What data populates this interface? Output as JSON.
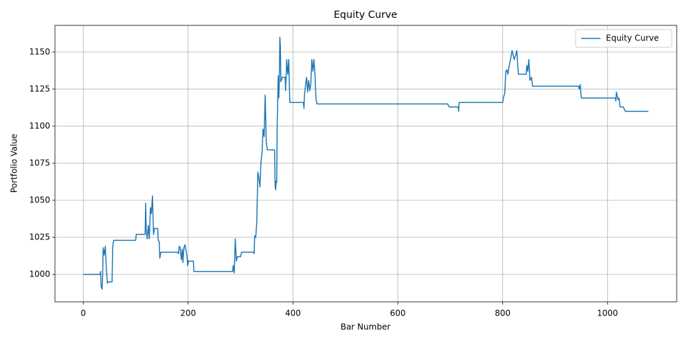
{
  "chart_data": {
    "type": "line",
    "title": "Equity Curve",
    "x_label": "Bar Number",
    "y_label": "Portfolio Value",
    "xlim": [
      -54,
      1132
    ],
    "ylim": [
      981.5,
      1168
    ],
    "xticks": [
      0,
      200,
      400,
      600,
      800,
      1000
    ],
    "yticks": [
      1000,
      1025,
      1050,
      1075,
      1100,
      1125,
      1150
    ],
    "grid": true,
    "legend": "upper right",
    "x": [
      0,
      32,
      33,
      34,
      36,
      37,
      38,
      40,
      42,
      44,
      46,
      48,
      55,
      56,
      58,
      100,
      101,
      118,
      119,
      120,
      122,
      124,
      126,
      128,
      130,
      132,
      134,
      136,
      142,
      143,
      145,
      146,
      148,
      180,
      182,
      183,
      185,
      187,
      189,
      190,
      192,
      194,
      196,
      198,
      199,
      201,
      210,
      211,
      285,
      286,
      288,
      290,
      292,
      294,
      300,
      302,
      325,
      326,
      327,
      329,
      331,
      333,
      335,
      337,
      339,
      341,
      343,
      345,
      347,
      349,
      351,
      365,
      366,
      367,
      368,
      369,
      370,
      372,
      373,
      374,
      375,
      376,
      377,
      380,
      385,
      386,
      388,
      390,
      392,
      394,
      420,
      421,
      422,
      424,
      426,
      428,
      430,
      432,
      434,
      436,
      438,
      440,
      442,
      444,
      446,
      695,
      698,
      715,
      716,
      717,
      800,
      802,
      804,
      806,
      808,
      810,
      812,
      815,
      818,
      820,
      822,
      825,
      827,
      830,
      845,
      846,
      848,
      850,
      852,
      855,
      857,
      945,
      946,
      948,
      950,
      1015,
      1016,
      1017,
      1020,
      1022,
      1024,
      1030,
      1034,
      1078
    ],
    "series": [
      {
        "name": "Equity Curve",
        "color": "#1f77b4",
        "values": [
          1000,
          1000,
          1002,
          992,
          990,
          1000,
          1018,
          1013,
          1019,
          1004,
          994,
          995,
          995,
          1018,
          1023,
          1023,
          1027,
          1027,
          1048,
          1030,
          1024,
          1033,
          1024,
          1045,
          1041,
          1053,
          1027,
          1031,
          1031,
          1023,
          1022,
          1011,
          1015,
          1015,
          1014,
          1019,
          1018,
          1010,
          1017,
          1008,
          1018,
          1020,
          1016,
          1012,
          1006,
          1009,
          1009,
          1002,
          1002,
          1006,
          1001,
          1024,
          1009,
          1012,
          1012,
          1015,
          1015,
          1014,
          1026,
          1025,
          1035,
          1069,
          1065,
          1059,
          1076,
          1082,
          1098,
          1093,
          1121,
          1090,
          1084,
          1084,
          1060,
          1057,
          1063,
          1062,
          1103,
          1134,
          1119,
          1132,
          1160,
          1154,
          1130,
          1133,
          1133,
          1124,
          1145,
          1135,
          1145,
          1116,
          1116,
          1112,
          1121,
          1128,
          1133,
          1123,
          1131,
          1124,
          1128,
          1145,
          1137,
          1145,
          1135,
          1118,
          1115,
          1115,
          1113,
          1113,
          1110,
          1116,
          1116,
          1120,
          1122,
          1137,
          1138,
          1135,
          1140,
          1145,
          1151,
          1148,
          1145,
          1148,
          1151,
          1135,
          1135,
          1141,
          1137,
          1145,
          1131,
          1133,
          1127,
          1127,
          1125,
          1128,
          1119,
          1119,
          1117,
          1123,
          1118,
          1119,
          1113,
          1113,
          1110,
          1110
        ]
      }
    ]
  }
}
